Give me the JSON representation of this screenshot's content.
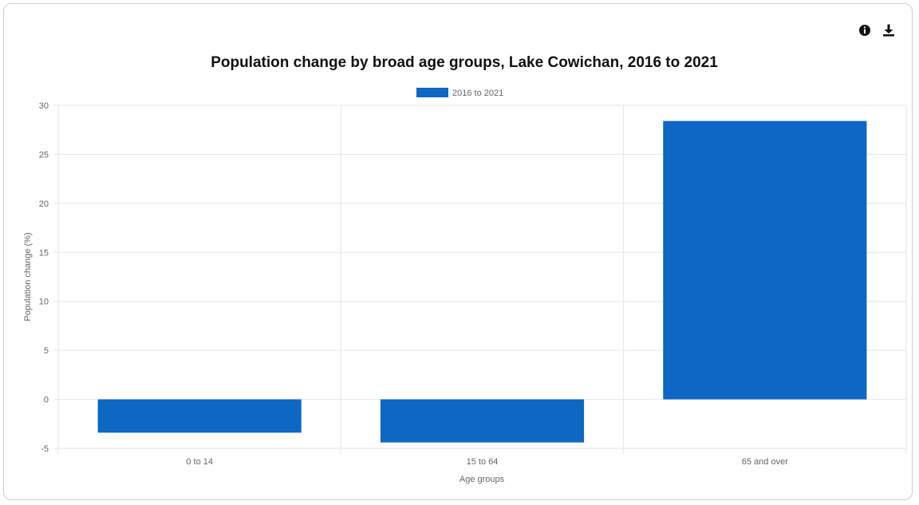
{
  "toolbar": {
    "info_icon": "info-circle-icon",
    "download_icon": "download-icon"
  },
  "colors": {
    "bar": "#0d67c3",
    "grid": "#e6e6e6",
    "axis_text": "#666666",
    "title": "#111111"
  },
  "chart_data": {
    "type": "bar",
    "title": "Population change by broad age groups, Lake Cowichan, 2016 to 2021",
    "xlabel": "Age groups",
    "ylabel": "Population change (%)",
    "categories": [
      "0 to 14",
      "15 to 64",
      "65 and over"
    ],
    "series": [
      {
        "name": "2016 to 2021",
        "values": [
          -3.4,
          -4.4,
          28.4
        ]
      }
    ],
    "ylim": [
      -5,
      30
    ],
    "yticks": [
      30,
      25,
      20,
      15,
      10,
      5,
      0,
      -5
    ],
    "grid": true,
    "legend_position": "top-center"
  }
}
